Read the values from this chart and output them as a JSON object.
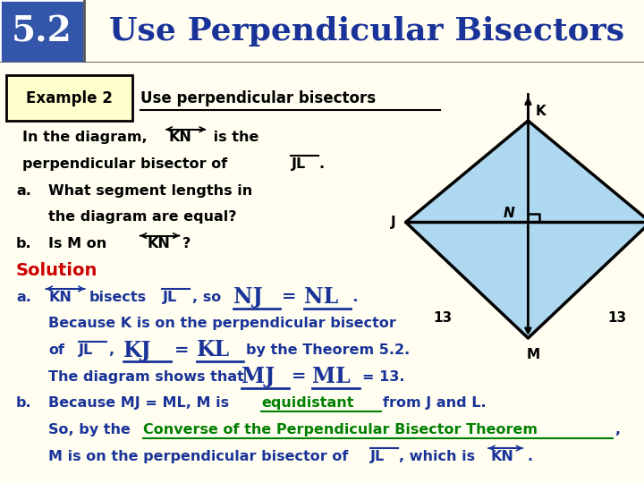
{
  "title": "Use Perpendicular Bisectors",
  "section": "5.2",
  "header_bg": "#FFFFCC",
  "header_text_color": "#1a3399",
  "page_bg": "#FFFEF0",
  "example_label": "Example 2",
  "example_title": "Use perpendicular bisectors",
  "diagram": {
    "fill_color": "#ADD8F0",
    "edge_color": "#000000",
    "line_width": 2.5
  },
  "text_color_blue": "#1a3399",
  "text_color_red": "#CC0000",
  "text_color_green": "#008000",
  "text_color_black": "#000000"
}
